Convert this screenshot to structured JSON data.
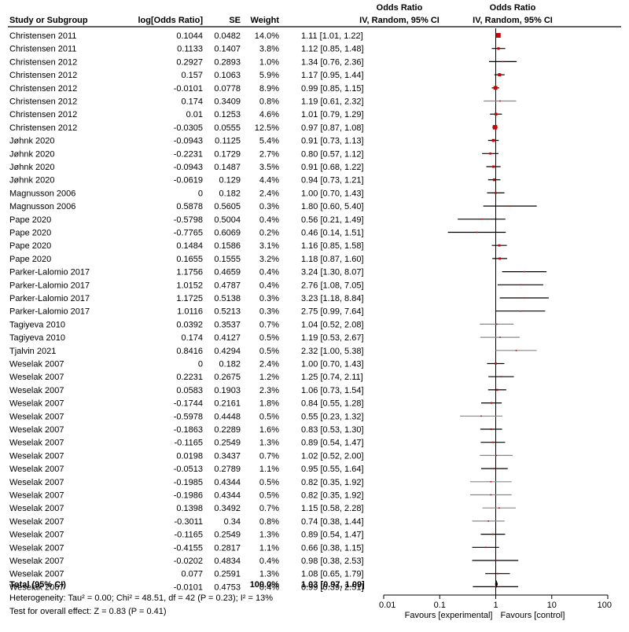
{
  "chart_data": {
    "type": "forest",
    "columns": {
      "study": "Study or Subgroup",
      "log_or": "log[Odds Ratio]",
      "se": "SE",
      "weight": "Weight",
      "or_title": "Odds Ratio",
      "or_sub": "IV, Random, 95% CI",
      "plot_title": "Odds Ratio",
      "plot_sub": "IV, Random, 95% CI"
    },
    "studies": [
      {
        "study": "Christensen 2011",
        "log_or": "0.1044",
        "se": "0.0482",
        "weight": "14.0%",
        "ci_text": "1.11 [1.01, 1.22]",
        "or": 1.11,
        "lo": 1.01,
        "hi": 1.22
      },
      {
        "study": "Christensen 2011",
        "log_or": "0.1133",
        "se": "0.1407",
        "weight": "3.8%",
        "ci_text": "1.12 [0.85, 1.48]",
        "or": 1.12,
        "lo": 0.85,
        "hi": 1.48
      },
      {
        "study": "Christensen 2012",
        "log_or": "0.2927",
        "se": "0.2893",
        "weight": "1.0%",
        "ci_text": "1.34 [0.76, 2.36]",
        "or": 1.34,
        "lo": 0.76,
        "hi": 2.36
      },
      {
        "study": "Christensen 2012",
        "log_or": "0.157",
        "se": "0.1063",
        "weight": "5.9%",
        "ci_text": "1.17 [0.95, 1.44]",
        "or": 1.17,
        "lo": 0.95,
        "hi": 1.44
      },
      {
        "study": "Christensen 2012",
        "log_or": "-0.0101",
        "se": "0.0778",
        "weight": "8.9%",
        "ci_text": "0.99 [0.85, 1.15]",
        "or": 0.99,
        "lo": 0.85,
        "hi": 1.15
      },
      {
        "study": "Christensen 2012",
        "log_or": "0.174",
        "se": "0.3409",
        "weight": "0.8%",
        "ci_text": "1.19 [0.61, 2.32]",
        "or": 1.19,
        "lo": 0.61,
        "hi": 2.32
      },
      {
        "study": "Christensen 2012",
        "log_or": "0.01",
        "se": "0.1253",
        "weight": "4.6%",
        "ci_text": "1.01 [0.79, 1.29]",
        "or": 1.01,
        "lo": 0.79,
        "hi": 1.29
      },
      {
        "study": "Christensen 2012",
        "log_or": "-0.0305",
        "se": "0.0555",
        "weight": "12.5%",
        "ci_text": "0.97 [0.87, 1.08]",
        "or": 0.97,
        "lo": 0.87,
        "hi": 1.08
      },
      {
        "study": "Jøhnk 2020",
        "log_or": "-0.0943",
        "se": "0.1125",
        "weight": "5.4%",
        "ci_text": "0.91 [0.73, 1.13]",
        "or": 0.91,
        "lo": 0.73,
        "hi": 1.13
      },
      {
        "study": "Jøhnk 2020",
        "log_or": "-0.2231",
        "se": "0.1729",
        "weight": "2.7%",
        "ci_text": "0.80 [0.57, 1.12]",
        "or": 0.8,
        "lo": 0.57,
        "hi": 1.12
      },
      {
        "study": "Jøhnk 2020",
        "log_or": "-0.0943",
        "se": "0.1487",
        "weight": "3.5%",
        "ci_text": "0.91 [0.68, 1.22]",
        "or": 0.91,
        "lo": 0.68,
        "hi": 1.22
      },
      {
        "study": "Jøhnk 2020",
        "log_or": "-0.0619",
        "se": "0.129",
        "weight": "4.4%",
        "ci_text": "0.94 [0.73, 1.21]",
        "or": 0.94,
        "lo": 0.73,
        "hi": 1.21
      },
      {
        "study": "Magnusson 2006",
        "log_or": "0",
        "se": "0.182",
        "weight": "2.4%",
        "ci_text": "1.00 [0.70, 1.43]",
        "or": 1.0,
        "lo": 0.7,
        "hi": 1.43
      },
      {
        "study": "Magnusson 2006",
        "log_or": "0.5878",
        "se": "0.5605",
        "weight": "0.3%",
        "ci_text": "1.80 [0.60, 5.40]",
        "or": 1.8,
        "lo": 0.6,
        "hi": 5.4
      },
      {
        "study": "Pape 2020",
        "log_or": "-0.5798",
        "se": "0.5004",
        "weight": "0.4%",
        "ci_text": "0.56 [0.21, 1.49]",
        "or": 0.56,
        "lo": 0.21,
        "hi": 1.49
      },
      {
        "study": "Pape 2020",
        "log_or": "-0.7765",
        "se": "0.6069",
        "weight": "0.2%",
        "ci_text": "0.46 [0.14, 1.51]",
        "or": 0.46,
        "lo": 0.14,
        "hi": 1.51
      },
      {
        "study": "Pape 2020",
        "log_or": "0.1484",
        "se": "0.1586",
        "weight": "3.1%",
        "ci_text": "1.16 [0.85, 1.58]",
        "or": 1.16,
        "lo": 0.85,
        "hi": 1.58
      },
      {
        "study": "Pape 2020",
        "log_or": "0.1655",
        "se": "0.1555",
        "weight": "3.2%",
        "ci_text": "1.18 [0.87, 1.60]",
        "or": 1.18,
        "lo": 0.87,
        "hi": 1.6
      },
      {
        "study": "Parker-Lalomio 2017",
        "log_or": "1.1756",
        "se": "0.4659",
        "weight": "0.4%",
        "ci_text": "3.24 [1.30, 8.07]",
        "or": 3.24,
        "lo": 1.3,
        "hi": 8.07
      },
      {
        "study": "Parker-Lalomio 2017",
        "log_or": "1.0152",
        "se": "0.4787",
        "weight": "0.4%",
        "ci_text": "2.76 [1.08, 7.05]",
        "or": 2.76,
        "lo": 1.08,
        "hi": 7.05
      },
      {
        "study": "Parker-Lalomio 2017",
        "log_or": "1.1725",
        "se": "0.5138",
        "weight": "0.3%",
        "ci_text": "3.23 [1.18, 8.84]",
        "or": 3.23,
        "lo": 1.18,
        "hi": 8.84
      },
      {
        "study": "Parker-Lalomio 2017",
        "log_or": "1.0116",
        "se": "0.5213",
        "weight": "0.3%",
        "ci_text": "2.75 [0.99, 7.64]",
        "or": 2.75,
        "lo": 0.99,
        "hi": 7.64
      },
      {
        "study": "Tagiyeva 2010",
        "log_or": "0.0392",
        "se": "0.3537",
        "weight": "0.7%",
        "ci_text": "1.04 [0.52, 2.08]",
        "or": 1.04,
        "lo": 0.52,
        "hi": 2.08
      },
      {
        "study": "Tagiyeva 2010",
        "log_or": "0.174",
        "se": "0.4127",
        "weight": "0.5%",
        "ci_text": "1.19 [0.53, 2.67]",
        "or": 1.19,
        "lo": 0.53,
        "hi": 2.67
      },
      {
        "study": "Tjalvin 2021",
        "log_or": "0.8416",
        "se": "0.4294",
        "weight": "0.5%",
        "ci_text": "2.32 [1.00, 5.38]",
        "or": 2.32,
        "lo": 1.0,
        "hi": 5.38
      },
      {
        "study": "Weselak 2007",
        "log_or": "0",
        "se": "0.182",
        "weight": "2.4%",
        "ci_text": "1.00 [0.70, 1.43]",
        "or": 1.0,
        "lo": 0.7,
        "hi": 1.43
      },
      {
        "study": "Weselak 2007",
        "log_or": "0.2231",
        "se": "0.2675",
        "weight": "1.2%",
        "ci_text": "1.25 [0.74, 2.11]",
        "or": 1.25,
        "lo": 0.74,
        "hi": 2.11
      },
      {
        "study": "Weselak 2007",
        "log_or": "0.0583",
        "se": "0.1903",
        "weight": "2.3%",
        "ci_text": "1.06 [0.73, 1.54]",
        "or": 1.06,
        "lo": 0.73,
        "hi": 1.54
      },
      {
        "study": "Weselak 2007",
        "log_or": "-0.1744",
        "se": "0.2161",
        "weight": "1.8%",
        "ci_text": "0.84 [0.55, 1.28]",
        "or": 0.84,
        "lo": 0.55,
        "hi": 1.28
      },
      {
        "study": "Weselak 2007",
        "log_or": "-0.5978",
        "se": "0.4448",
        "weight": "0.5%",
        "ci_text": "0.55 [0.23, 1.32]",
        "or": 0.55,
        "lo": 0.23,
        "hi": 1.32
      },
      {
        "study": "Weselak 2007",
        "log_or": "-0.1863",
        "se": "0.2289",
        "weight": "1.6%",
        "ci_text": "0.83 [0.53, 1.30]",
        "or": 0.83,
        "lo": 0.53,
        "hi": 1.3
      },
      {
        "study": "Weselak 2007",
        "log_or": "-0.1165",
        "se": "0.2549",
        "weight": "1.3%",
        "ci_text": "0.89 [0.54, 1.47]",
        "or": 0.89,
        "lo": 0.54,
        "hi": 1.47
      },
      {
        "study": "Weselak 2007",
        "log_or": "0.0198",
        "se": "0.3437",
        "weight": "0.7%",
        "ci_text": "1.02 [0.52, 2.00]",
        "or": 1.02,
        "lo": 0.52,
        "hi": 2.0
      },
      {
        "study": "Weselak 2007",
        "log_or": "-0.0513",
        "se": "0.2789",
        "weight": "1.1%",
        "ci_text": "0.95 [0.55, 1.64]",
        "or": 0.95,
        "lo": 0.55,
        "hi": 1.64
      },
      {
        "study": "Weselak 2007",
        "log_or": "-0.1985",
        "se": "0.4344",
        "weight": "0.5%",
        "ci_text": "0.82 [0.35, 1.92]",
        "or": 0.82,
        "lo": 0.35,
        "hi": 1.92
      },
      {
        "study": "Weselak 2007",
        "log_or": "-0.1986",
        "se": "0.4344",
        "weight": "0.5%",
        "ci_text": "0.82 [0.35, 1.92]",
        "or": 0.82,
        "lo": 0.35,
        "hi": 1.92
      },
      {
        "study": "Weselak 2007",
        "log_or": "0.1398",
        "se": "0.3492",
        "weight": "0.7%",
        "ci_text": "1.15 [0.58, 2.28]",
        "or": 1.15,
        "lo": 0.58,
        "hi": 2.28
      },
      {
        "study": "Weselak 2007",
        "log_or": "-0.3011",
        "se": "0.34",
        "weight": "0.8%",
        "ci_text": "0.74 [0.38, 1.44]",
        "or": 0.74,
        "lo": 0.38,
        "hi": 1.44
      },
      {
        "study": "Weselak 2007",
        "log_or": "-0.1165",
        "se": "0.2549",
        "weight": "1.3%",
        "ci_text": "0.89 [0.54, 1.47]",
        "or": 0.89,
        "lo": 0.54,
        "hi": 1.47
      },
      {
        "study": "Weselak 2007",
        "log_or": "-0.4155",
        "se": "0.2817",
        "weight": "1.1%",
        "ci_text": "0.66 [0.38, 1.15]",
        "or": 0.66,
        "lo": 0.38,
        "hi": 1.15
      },
      {
        "study": "Weselak 2007",
        "log_or": "-0.0202",
        "se": "0.4834",
        "weight": "0.4%",
        "ci_text": "0.98 [0.38, 2.53]",
        "or": 0.98,
        "lo": 0.38,
        "hi": 2.53
      },
      {
        "study": "Weselak 2007",
        "log_or": "0.077",
        "se": "0.2591",
        "weight": "1.3%",
        "ci_text": "1.08 [0.65, 1.79]",
        "or": 1.08,
        "lo": 0.65,
        "hi": 1.79
      },
      {
        "study": "Weselak 2007",
        "log_or": "-0.0101",
        "se": "0.4753",
        "weight": "0.4%",
        "ci_text": "0.99 [0.39, 2.51]",
        "or": 0.99,
        "lo": 0.39,
        "hi": 2.51
      }
    ],
    "total": {
      "label": "Total (95% CI)",
      "weight": "100.0%",
      "ci_text": "1.03 [0.97, 1.09]",
      "or": 1.03,
      "lo": 0.97,
      "hi": 1.09
    },
    "heterogeneity": "Heterogeneity: Tau² = 0.00; Chi² = 48.51, df = 42 (P = 0.23); I² = 13%",
    "overall_effect": "Test for overall effect: Z = 0.83 (P = 0.41)",
    "axis": {
      "scale": "log",
      "xlim": [
        0.01,
        100
      ],
      "ticks": [
        0.01,
        0.1,
        1,
        10,
        100
      ],
      "tick_labels": [
        "0.01",
        "0.1",
        "1",
        "10",
        "100"
      ],
      "label_left": "Favours [experimental]",
      "label_right": "Favours [control]"
    },
    "colors": {
      "marker": "#cc0000",
      "line": "#000000",
      "light_line": "#888888"
    }
  }
}
